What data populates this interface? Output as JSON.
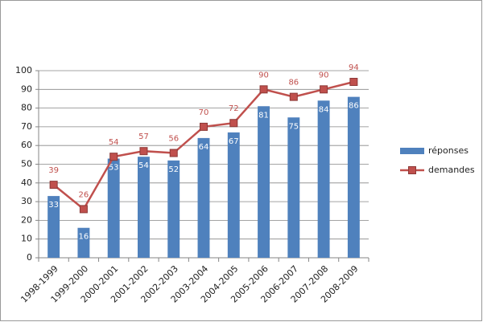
{
  "chart_data": {
    "type": "bar",
    "categories": [
      "1998-1999",
      "1999-2000",
      "2000-2001",
      "2001-2002",
      "2002-2003",
      "2003-2004",
      "2004-2005",
      "2005-2006",
      "2006-2007",
      "2007-2008",
      "2008-2009"
    ],
    "series": [
      {
        "name": "réponses",
        "type": "bar",
        "color": "#4f81bd",
        "values": [
          33,
          16,
          53,
          54,
          52,
          64,
          67,
          81,
          75,
          84,
          86
        ]
      },
      {
        "name": "demandes",
        "type": "line",
        "color": "#c0504d",
        "values": [
          39,
          26,
          54,
          57,
          56,
          70,
          72,
          90,
          86,
          90,
          94
        ]
      }
    ],
    "ylim": [
      0,
      100
    ],
    "yticks": [
      0,
      10,
      20,
      30,
      40,
      50,
      60,
      70,
      80,
      90,
      100
    ],
    "grid": true,
    "legend": "right"
  }
}
